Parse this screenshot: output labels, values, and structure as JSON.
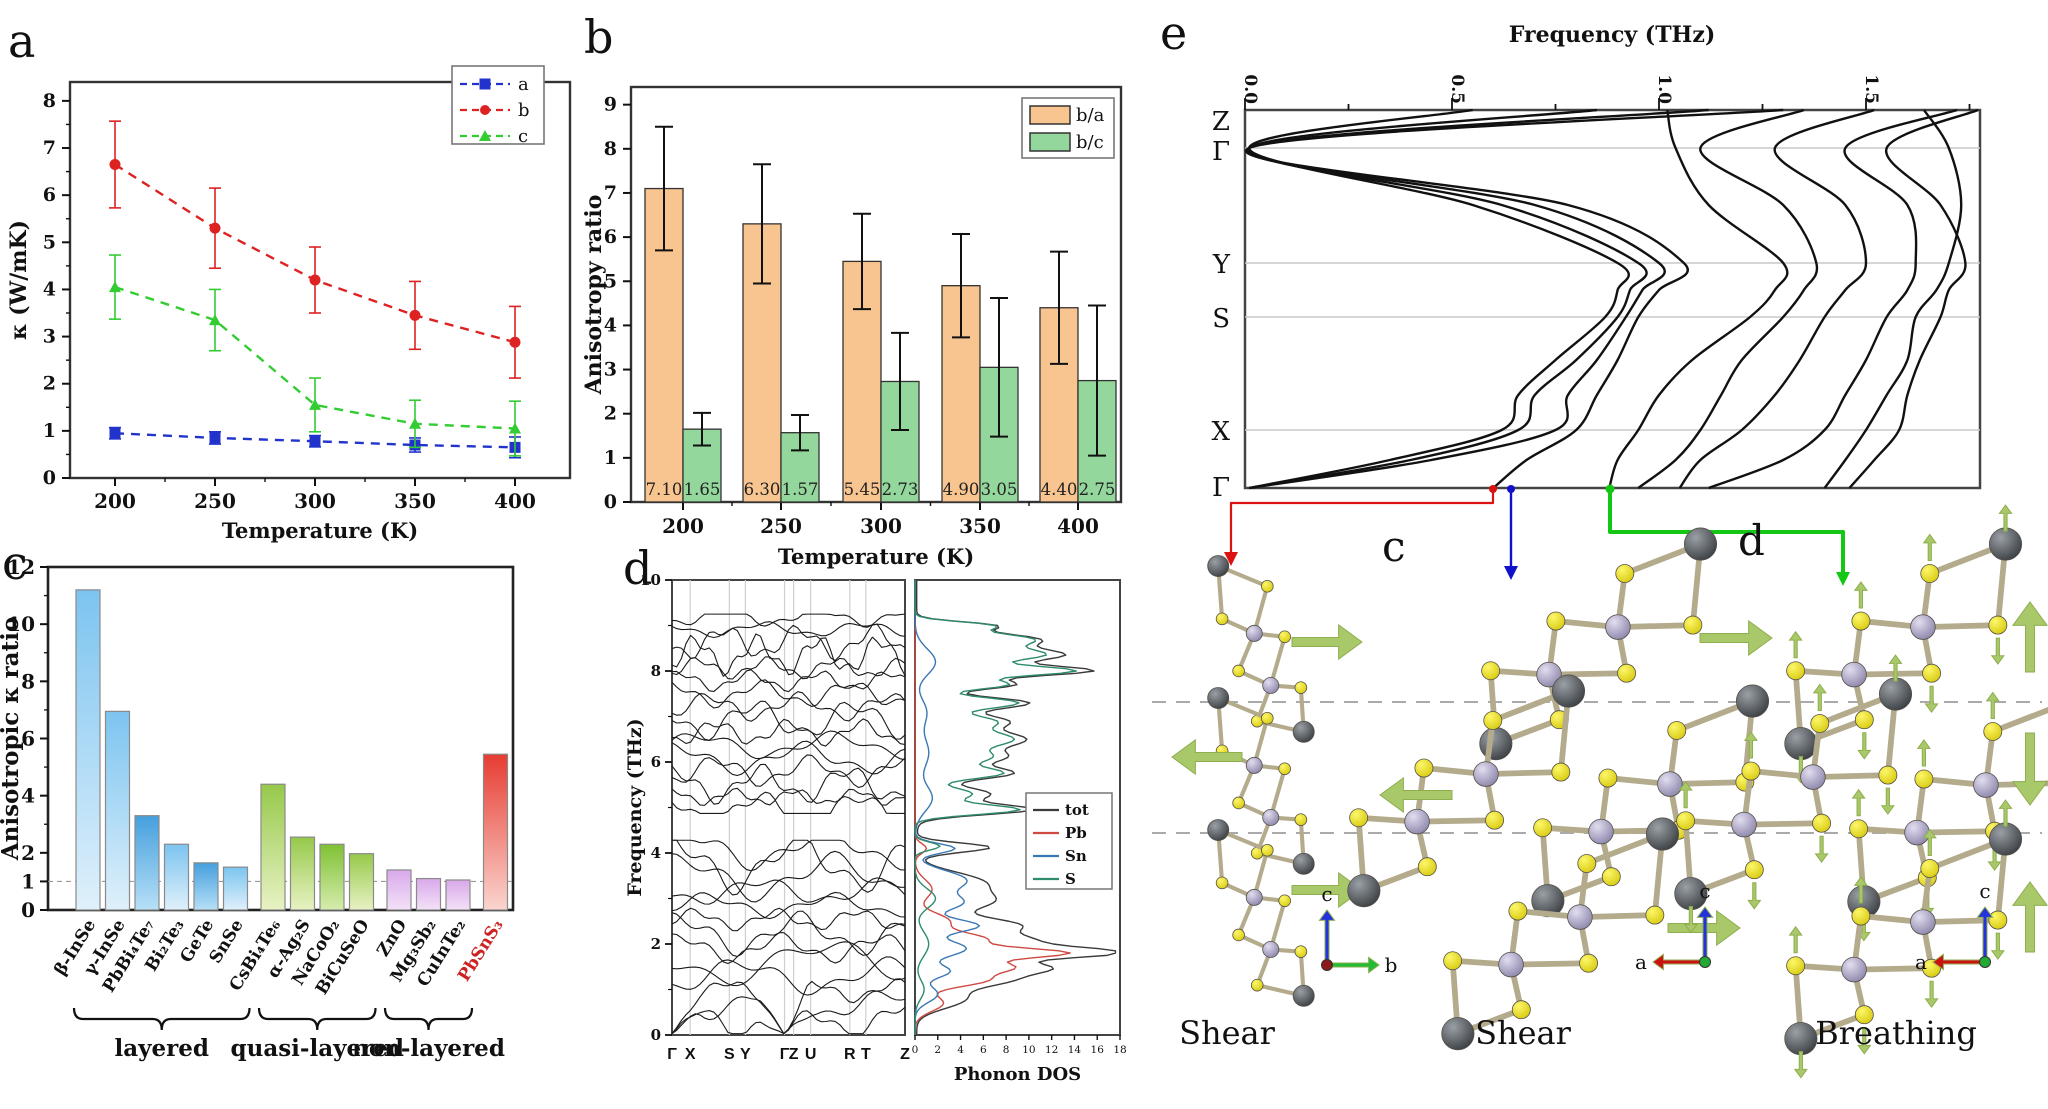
{
  "panel_letters": {
    "a": "a",
    "b": "b",
    "c": "c",
    "d": "d",
    "e": "e"
  },
  "chart_data": [
    {
      "panel": "a",
      "type": "line",
      "xlabel": "Temperature (K)",
      "ylabel": "κ (W/mK)",
      "x": [
        200,
        250,
        300,
        350,
        400
      ],
      "ylim": [
        0,
        8.4
      ],
      "yticks": [
        0,
        1,
        2,
        3,
        4,
        5,
        6,
        7,
        8
      ],
      "legend_position": "top-right",
      "grid": false,
      "series": [
        {
          "name": "a",
          "color": "#2233cc",
          "marker": "square",
          "values": [
            0.95,
            0.85,
            0.78,
            0.7,
            0.65
          ],
          "errors": [
            0.12,
            0.13,
            0.12,
            0.15,
            0.22
          ]
        },
        {
          "name": "b",
          "color": "#dd2222",
          "marker": "circle",
          "values": [
            6.65,
            5.3,
            4.2,
            3.45,
            2.88
          ],
          "errors": [
            0.92,
            0.85,
            0.7,
            0.72,
            0.76
          ]
        },
        {
          "name": "c",
          "color": "#33cc33",
          "marker": "triangle",
          "values": [
            4.05,
            3.35,
            1.55,
            1.15,
            1.05
          ],
          "errors": [
            0.68,
            0.65,
            0.57,
            0.5,
            0.58
          ]
        }
      ]
    },
    {
      "panel": "b",
      "type": "bar",
      "xlabel": "Temperature (K)",
      "ylabel": "Anisotropy ratio",
      "categories": [
        200,
        250,
        300,
        350,
        400
      ],
      "ylim": [
        0,
        9.4
      ],
      "yticks": [
        0,
        1,
        2,
        3,
        4,
        5,
        6,
        7,
        8,
        9
      ],
      "legend_position": "top-right",
      "series": [
        {
          "name": "b/a",
          "color": "#f8c48f",
          "values": [
            7.1,
            6.3,
            5.45,
            4.9,
            4.4
          ],
          "errors": [
            1.4,
            1.35,
            1.08,
            1.17,
            1.27
          ]
        },
        {
          "name": "b/c",
          "color": "#93d79c",
          "values": [
            1.65,
            1.57,
            2.73,
            3.05,
            2.75
          ],
          "errors": [
            0.37,
            0.4,
            1.1,
            1.57,
            1.7
          ]
        }
      ],
      "value_label_decimals": 2
    },
    {
      "panel": "c",
      "type": "bar",
      "ylabel": "Anisotropic κ ratio",
      "ylim": [
        0,
        12
      ],
      "yticks_labeled": [
        0,
        1,
        2,
        4,
        6,
        8,
        10,
        12
      ],
      "reference_line": 1,
      "bars": [
        {
          "label": "β-InSe",
          "value": 11.2,
          "palette": "blue"
        },
        {
          "label": "γ-InSe",
          "value": 6.95,
          "palette": "blue"
        },
        {
          "label": "PbBi₄Te₇",
          "value": 3.3,
          "palette": "blue2"
        },
        {
          "label": "Bi₂Te₃",
          "value": 2.3,
          "palette": "blue"
        },
        {
          "label": "GeTe",
          "value": 1.65,
          "palette": "blue2"
        },
        {
          "label": "SnSe",
          "value": 1.5,
          "palette": "blue"
        },
        {
          "label": "CsBi₄Te₆",
          "value": 4.4,
          "palette": "green"
        },
        {
          "label": "α-Ag₂S",
          "value": 2.55,
          "palette": "green"
        },
        {
          "label": "NaCoO₂",
          "value": 2.3,
          "palette": "green2"
        },
        {
          "label": "BiCuSeO",
          "value": 1.97,
          "palette": "green"
        },
        {
          "label": "ZnO",
          "value": 1.4,
          "palette": "purple"
        },
        {
          "label": "Mg₃Sb₂",
          "value": 1.1,
          "palette": "purple"
        },
        {
          "label": "CuInTe₂",
          "value": 1.05,
          "palette": "purple"
        },
        {
          "label": "PbSnS₃",
          "value": 5.45,
          "palette": "red",
          "label_color": "#cc2222"
        }
      ],
      "groups": [
        {
          "label": "layered",
          "from": 0,
          "to": 5
        },
        {
          "label": "quasi-layered",
          "from": 6,
          "to": 9
        },
        {
          "label": "non-layered",
          "from": 10,
          "to": 12
        }
      ]
    },
    {
      "panel": "d",
      "type": "line",
      "ylabel": "Frequency (THz)",
      "ylim": [
        0,
        10
      ],
      "yticks": [
        0,
        2,
        4,
        6,
        8,
        10
      ],
      "kpoints": [
        "Γ",
        "X",
        "S",
        "Y",
        "Γ",
        "Z",
        "U",
        "R",
        "T",
        "Z"
      ],
      "kfractions": [
        0,
        0.078,
        0.246,
        0.315,
        0.483,
        0.522,
        0.595,
        0.763,
        0.832,
        1
      ],
      "band_gap_THz": [
        4.35,
        4.85
      ],
      "dos": {
        "xlabel": "Phonon DOS",
        "xlim": [
          0,
          18
        ],
        "xticks": [
          0,
          2,
          4,
          6,
          8,
          10,
          12,
          14,
          16,
          18
        ],
        "legend": [
          {
            "name": "tot",
            "color": "#3a3a3a"
          },
          {
            "name": "Pb",
            "color": "#cf4a42"
          },
          {
            "name": "Sn",
            "color": "#3a78b5"
          },
          {
            "name": "S",
            "color": "#2e8b6e"
          }
        ]
      }
    },
    {
      "panel": "e",
      "type": "line",
      "title": "Frequency (THz)",
      "xticks": [
        "0.0",
        "0.5",
        "1.0",
        "1.5"
      ],
      "xlim": [
        0,
        1.78
      ],
      "kpath": [
        "Z",
        "Γ",
        "Y",
        "S",
        "X",
        "Γ"
      ],
      "bands_THz_at_kpath_rows": [
        [
          0.55,
          0.01,
          0.55,
          0.9,
          0.9,
          0.87,
          0.75,
          0.66,
          0.62,
          0.35,
          0.01
        ],
        [
          0.85,
          0.01,
          0.62,
          0.95,
          0.93,
          0.9,
          0.8,
          0.7,
          0.66,
          0.4,
          0.01
        ],
        [
          1.12,
          0.01,
          0.7,
          1.0,
          0.96,
          0.92,
          0.85,
          0.78,
          0.75,
          0.45,
          0.01
        ],
        [
          1.3,
          0.01,
          0.78,
          1.06,
          1.0,
          0.95,
          0.9,
          0.85,
          0.8,
          0.68,
          0.6
        ],
        [
          1.02,
          1.04,
          1.12,
          1.3,
          1.28,
          1.22,
          1.08,
          1.0,
          0.95,
          0.9,
          0.88
        ],
        [
          1.35,
          1.1,
          1.3,
          1.38,
          1.35,
          1.3,
          1.2,
          1.15,
          1.1,
          1.04,
          0.95
        ],
        [
          1.52,
          1.28,
          1.45,
          1.5,
          1.45,
          1.4,
          1.34,
          1.28,
          1.2,
          1.1,
          1.05
        ],
        [
          1.72,
          1.45,
          1.6,
          1.62,
          1.6,
          1.55,
          1.5,
          1.45,
          1.4,
          1.3,
          1.12
        ],
        [
          1.64,
          1.7,
          1.73,
          1.7,
          1.67,
          1.62,
          1.6,
          1.55,
          1.5,
          1.45,
          1.4
        ],
        [
          1.78,
          1.55,
          1.68,
          1.74,
          1.7,
          1.68,
          1.63,
          1.6,
          1.58,
          1.52,
          1.46
        ]
      ]
    }
  ],
  "structures": {
    "sub_labels": {
      "c": "c",
      "d": "d"
    },
    "modes": [
      {
        "label": "Shear",
        "axis_up": "c",
        "axis_side": "b",
        "side_dir": "right",
        "origin_color": "#8b1a1a"
      },
      {
        "label": "Shear",
        "axis_up": "c",
        "axis_side": "a",
        "side_dir": "left",
        "origin_color": "#22aa33"
      },
      {
        "label": "Breathing",
        "axis_up": "c",
        "axis_side": "a",
        "side_dir": "left",
        "origin_color": "#22aa33"
      }
    ],
    "atom_colors": {
      "Pb": "#4d5054",
      "Sn": "#a9a3c4",
      "S": "#efe22b"
    },
    "arrow_color": "#a9c86a",
    "connector_colors": {
      "red": "#dd1111",
      "blue": "#1111cc",
      "green": "#15c715"
    }
  }
}
